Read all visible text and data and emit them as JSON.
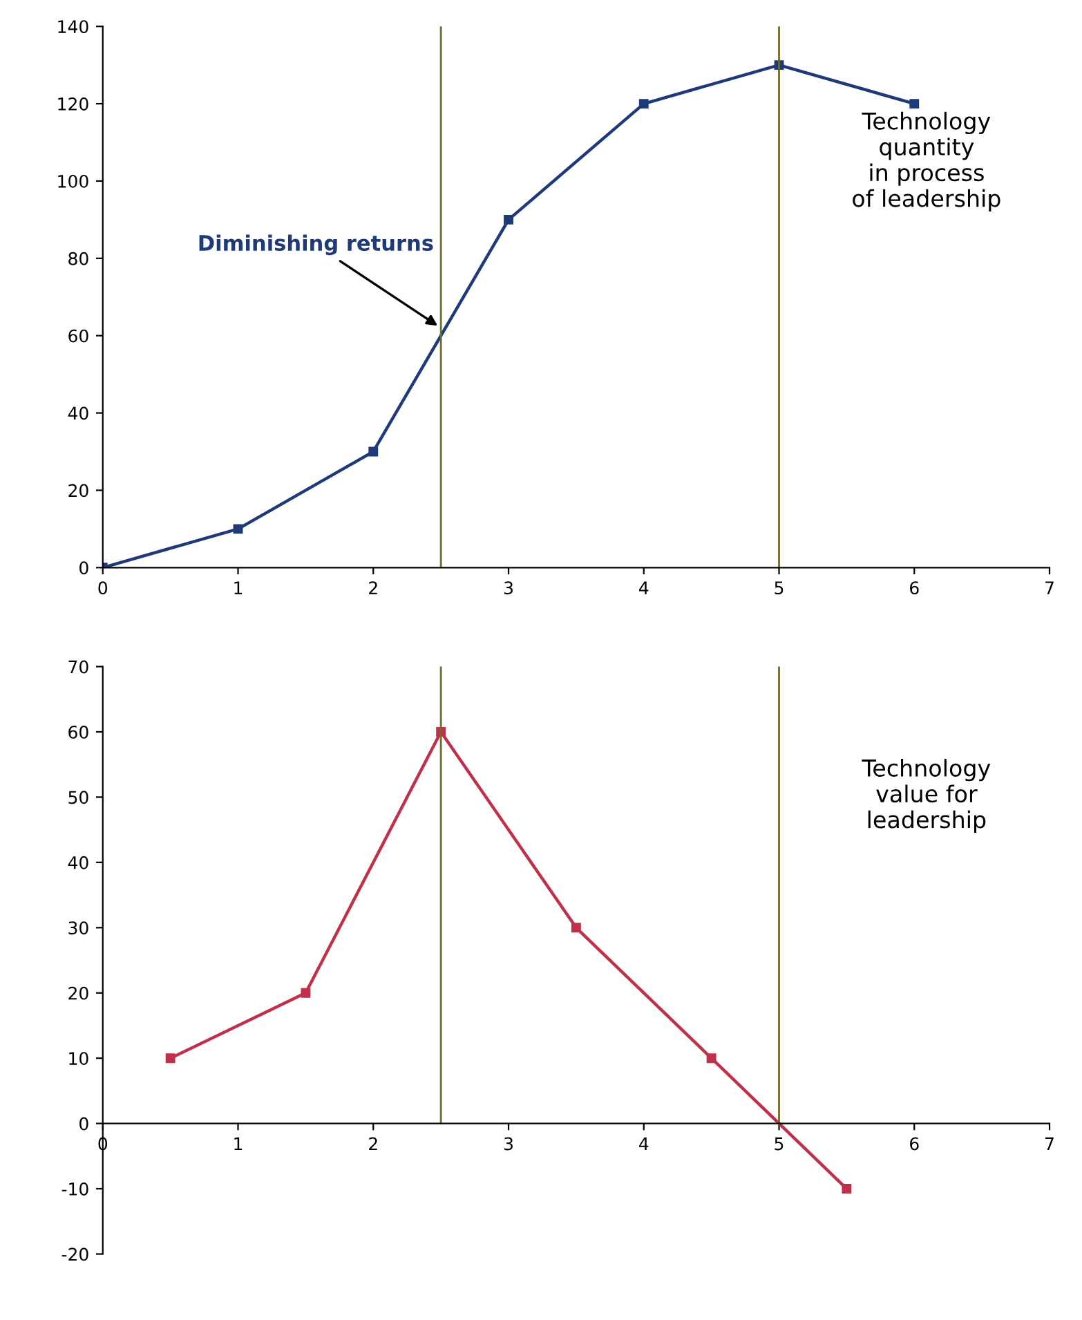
{
  "chart_data": [
    {
      "type": "line",
      "x": [
        0,
        1,
        2,
        3,
        4,
        5,
        6
      ],
      "series": [
        {
          "color": "#1f3a7a",
          "values": [
            0,
            10,
            30,
            90,
            120,
            130,
            120
          ]
        }
      ],
      "xlim": [
        0,
        7
      ],
      "xticks": [
        0,
        1,
        2,
        3,
        4,
        5,
        6,
        7
      ],
      "ylim": [
        0,
        140
      ],
      "yticks": [
        0,
        20,
        40,
        60,
        80,
        100,
        120,
        140
      ],
      "grid": false,
      "marker": "square",
      "line_style": "solid",
      "ref_lines": [
        {
          "axis": "x",
          "value": 2.5,
          "color": "#6b6b2a"
        },
        {
          "axis": "x",
          "value": 5,
          "color": "#6b6b2a"
        }
      ],
      "annotations": [
        {
          "text": "Diminishing returns",
          "x": 2.5,
          "y": 62
        },
        "Technology\nquantity\nin process\nof leadership"
      ]
    },
    {
      "type": "line",
      "x": [
        0.5,
        1.5,
        2.5,
        3.5,
        4.5,
        5.5
      ],
      "series": [
        {
          "color": "#c0304a",
          "values": [
            10,
            20,
            60,
            30,
            10,
            -10
          ]
        }
      ],
      "xlim": [
        0,
        7
      ],
      "xticks": [
        0,
        1,
        2,
        3,
        4,
        5,
        6,
        7
      ],
      "ylim": [
        -20,
        70
      ],
      "yticks": [
        -20,
        -10,
        0,
        10,
        20,
        30,
        40,
        50,
        60,
        70
      ],
      "grid": false,
      "marker": "square",
      "line_style": "solid",
      "ref_lines": [
        {
          "axis": "x",
          "value": 2.5,
          "color": "#6b6b2a"
        },
        {
          "axis": "x",
          "value": 5,
          "color": "#6b6b2a"
        }
      ],
      "annotations": [
        "Technology\nvalue for\nleadership"
      ]
    }
  ]
}
